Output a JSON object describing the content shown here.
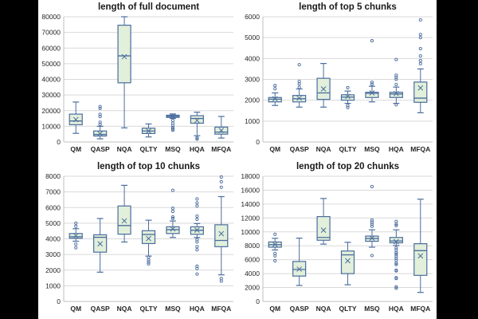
{
  "page": {
    "background": "#000000",
    "panel_background": "#ffffff"
  },
  "style": {
    "box_fill": "#e2efda",
    "box_stroke": "#4a6d9e",
    "grid_color": "#d9d9d9",
    "axis_color": "#bfbfbf",
    "title_color": "#1a1a1a",
    "tick_color": "#262626"
  },
  "chart_data": [
    {
      "type": "boxplot",
      "title": "length of full document",
      "categories": [
        "QM",
        "QASP",
        "NQA",
        "QLTY",
        "MSQ",
        "HQA",
        "MFQA"
      ],
      "ylim": [
        0,
        80000
      ],
      "ystep": 10000,
      "grid": true,
      "series": [
        {
          "label": "QM",
          "whislo": 5500,
          "q1": 11000,
          "med": 13400,
          "q3": 17800,
          "whishi": 25500,
          "mean": 14300,
          "outliers": []
        },
        {
          "label": "QASP",
          "whislo": 2000,
          "q1": 3800,
          "med": 4800,
          "q3": 7000,
          "whishi": 10000,
          "mean": 5300,
          "outliers": [
            11200,
            12600,
            16200,
            17600,
            21400,
            22600
          ]
        },
        {
          "label": "NQA",
          "whislo": 9000,
          "q1": 37800,
          "med": 55000,
          "q3": 74600,
          "whishi": 80000,
          "mean": 54500,
          "outliers": []
        },
        {
          "label": "QLTY",
          "whislo": 3200,
          "q1": 5400,
          "med": 7000,
          "q3": 8800,
          "whishi": 11500,
          "mean": 7000,
          "outliers": []
        },
        {
          "label": "MSQ",
          "whislo": 15000,
          "q1": 15700,
          "med": 16400,
          "q3": 17100,
          "whishi": 17900,
          "mean": 16400,
          "outliers": [
            7500,
            8300,
            9200,
            10500,
            12000,
            13800
          ]
        },
        {
          "label": "HQA",
          "whislo": 4000,
          "q1": 12000,
          "med": 15000,
          "q3": 16800,
          "whishi": 19000,
          "mean": 13800,
          "outliers": [
            1800,
            2600
          ]
        },
        {
          "label": "MFQA",
          "whislo": 2500,
          "q1": 5000,
          "med": 6300,
          "q3": 9500,
          "whishi": 16300,
          "mean": 7400,
          "outliers": []
        }
      ]
    },
    {
      "type": "boxplot",
      "title": "length of top 5 chunks",
      "categories": [
        "QM",
        "QASP",
        "NQA",
        "QLTY",
        "MSQ",
        "HQA",
        "MFQA"
      ],
      "ylim": [
        0,
        6000
      ],
      "ystep": 1000,
      "grid": true,
      "series": [
        {
          "label": "QM",
          "whislo": 1750,
          "q1": 1920,
          "med": 2050,
          "q3": 2130,
          "whishi": 2350,
          "mean": 2070,
          "outliers": [
            2550,
            2700
          ]
        },
        {
          "label": "QASP",
          "whislo": 1670,
          "q1": 1920,
          "med": 2070,
          "q3": 2230,
          "whishi": 2540,
          "mean": 2100,
          "outliers": [
            2620,
            2780,
            2900,
            3700
          ]
        },
        {
          "label": "NQA",
          "whislo": 1670,
          "q1": 2040,
          "med": 2350,
          "q3": 3050,
          "whishi": 3760,
          "mean": 2540,
          "outliers": []
        },
        {
          "label": "QLTY",
          "whislo": 1850,
          "q1": 2000,
          "med": 2150,
          "q3": 2260,
          "whishi": 2440,
          "mean": 2180,
          "outliers": [
            1650,
            1750,
            2600
          ]
        },
        {
          "label": "MSQ",
          "whislo": 1920,
          "q1": 2130,
          "med": 2330,
          "q3": 2380,
          "whishi": 2670,
          "mean": 2350,
          "outliers": [
            2770,
            2860,
            4850
          ]
        },
        {
          "label": "HQA",
          "whislo": 1850,
          "q1": 2130,
          "med": 2300,
          "q3": 2380,
          "whishi": 2630,
          "mean": 2320,
          "outliers": [
            1780,
            2750,
            3000,
            3100,
            3200,
            3950
          ]
        },
        {
          "label": "MFQA",
          "whislo": 1400,
          "q1": 1900,
          "med": 2100,
          "q3": 2870,
          "whishi": 3500,
          "mean": 2590,
          "outliers": [
            3750,
            3900,
            4120,
            4470,
            5000,
            5150,
            5850
          ]
        }
      ]
    },
    {
      "type": "boxplot",
      "title": "length of top 10 chunks",
      "categories": [
        "QM",
        "QASP",
        "NQA",
        "QLTY",
        "MSQ",
        "HQA",
        "MFQA"
      ],
      "ylim": [
        0,
        8000
      ],
      "ystep": 1000,
      "grid": true,
      "series": [
        {
          "label": "QM",
          "whislo": 3850,
          "q1": 4040,
          "med": 4140,
          "q3": 4340,
          "whishi": 4650,
          "mean": 4200,
          "outliers": [
            3430,
            3660,
            4800,
            5000
          ]
        },
        {
          "label": "QASP",
          "whislo": 1870,
          "q1": 3150,
          "med": 4100,
          "q3": 4260,
          "whishi": 5300,
          "mean": 3680,
          "outliers": []
        },
        {
          "label": "NQA",
          "whislo": 3800,
          "q1": 4300,
          "med": 4850,
          "q3": 6100,
          "whishi": 7420,
          "mean": 5150,
          "outliers": []
        },
        {
          "label": "QLTY",
          "whislo": 2900,
          "q1": 3700,
          "med": 4280,
          "q3": 4520,
          "whishi": 5190,
          "mean": 4020,
          "outliers": [
            2400,
            2520,
            2650,
            2820
          ]
        },
        {
          "label": "MSQ",
          "whislo": 4090,
          "q1": 4340,
          "med": 4590,
          "q3": 4770,
          "whishi": 5140,
          "mean": 4630,
          "outliers": [
            5300,
            5400,
            5750,
            5950,
            7100
          ]
        },
        {
          "label": "HQA",
          "whislo": 4090,
          "q1": 4290,
          "med": 4550,
          "q3": 4770,
          "whishi": 4975,
          "mean": 4560,
          "outliers": [
            1750,
            2100,
            2250,
            3300,
            3500,
            3800,
            3950,
            5250,
            5450,
            6100,
            6300,
            6550
          ]
        },
        {
          "label": "MFQA",
          "whislo": 1700,
          "q1": 3500,
          "med": 3900,
          "q3": 4900,
          "whishi": 6700,
          "mean": 4330,
          "outliers": [
            1300,
            1460,
            7300,
            7650,
            7950
          ]
        }
      ]
    },
    {
      "type": "boxplot",
      "title": "length of top 20 chunks",
      "categories": [
        "QM",
        "QASP",
        "NQA",
        "QLTY",
        "MSQ",
        "HQA",
        "MFQA"
      ],
      "ylim": [
        0,
        18000
      ],
      "ystep": 2000,
      "grid": true,
      "series": [
        {
          "label": "QM",
          "whislo": 7400,
          "q1": 7800,
          "med": 8160,
          "q3": 8550,
          "whishi": 9080,
          "mean": 8200,
          "outliers": [
            5850,
            6550,
            6900,
            9650
          ]
        },
        {
          "label": "QASP",
          "whislo": 2300,
          "q1": 3650,
          "med": 4600,
          "q3": 5750,
          "whishi": 9100,
          "mean": 4650,
          "outliers": []
        },
        {
          "label": "NQA",
          "whislo": 8240,
          "q1": 8800,
          "med": 9200,
          "q3": 12200,
          "whishi": 14800,
          "mean": 10250,
          "outliers": []
        },
        {
          "label": "QLTY",
          "whislo": 2400,
          "q1": 4000,
          "med": 6700,
          "q3": 7250,
          "whishi": 8500,
          "mean": 5850,
          "outliers": []
        },
        {
          "label": "MSQ",
          "whislo": 7800,
          "q1": 8650,
          "med": 9050,
          "q3": 9400,
          "whishi": 10300,
          "mean": 9100,
          "outliers": [
            6600,
            10800,
            11100,
            11400,
            11700,
            16500
          ]
        },
        {
          "label": "HQA",
          "whislo": 8050,
          "q1": 8430,
          "med": 8700,
          "q3": 9200,
          "whishi": 10300,
          "mean": 8600,
          "outliers": [
            1900,
            2100,
            3300,
            3400,
            4400,
            4500,
            5300,
            5500,
            5900,
            6200,
            6500,
            6800,
            7000,
            7400,
            7700,
            10900,
            11100,
            11500
          ]
        },
        {
          "label": "MFQA",
          "whislo": 1300,
          "q1": 3750,
          "med": 7300,
          "q3": 8300,
          "whishi": 14700,
          "mean": 6550,
          "outliers": []
        }
      ]
    }
  ]
}
